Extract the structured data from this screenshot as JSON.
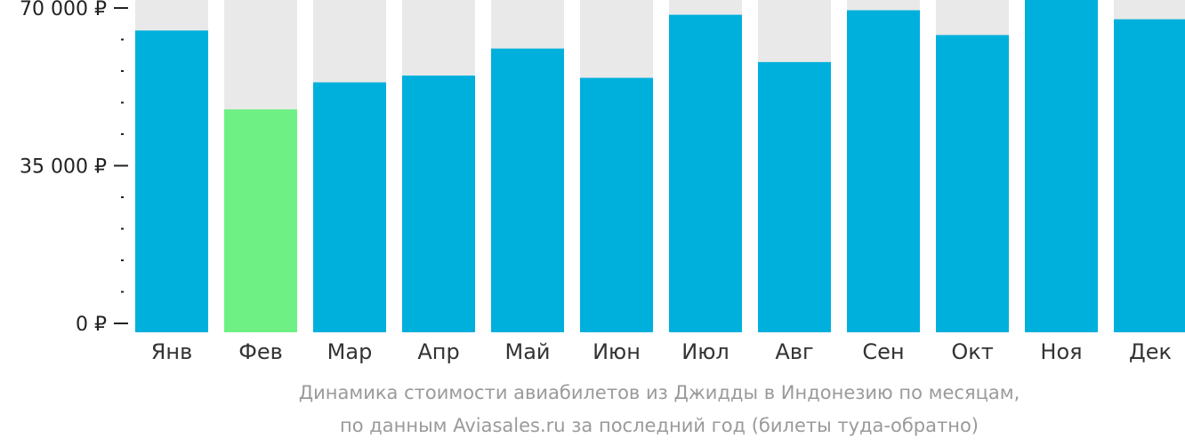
{
  "chart_data": {
    "type": "bar",
    "categories": [
      "Янв",
      "Фев",
      "Мар",
      "Апр",
      "Май",
      "Июн",
      "Июл",
      "Авг",
      "Сен",
      "Окт",
      "Ноя",
      "Дек"
    ],
    "values": [
      65000,
      47500,
      53500,
      55000,
      61000,
      54500,
      68500,
      58000,
      69500,
      64000,
      72000,
      67500
    ],
    "ylim": [
      0,
      72000
    ],
    "y_ticks": [
      {
        "value": 0,
        "label": "0 ₽"
      },
      {
        "value": 35000,
        "label": "35 000 ₽"
      },
      {
        "value": 70000,
        "label": "70 000 ₽"
      }
    ],
    "minor_tick_step": 7000,
    "highlight_index": 1,
    "colors": {
      "bar": "#00b0dc",
      "highlight": "#6ef085",
      "background_bar": "#e9e9e9",
      "axis": "#222222"
    },
    "grid": false,
    "legend": "none",
    "caption_lines": [
      "Динамика стоимости авиабилетов из Джидды в Индонезию по месяцам,",
      "по данным Aviasales.ru за последний год (билеты туда-обратно)"
    ]
  }
}
